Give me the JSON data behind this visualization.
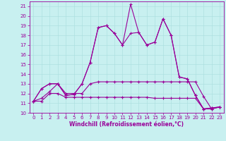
{
  "xlabel": "Windchill (Refroidissement éolien,°C)",
  "bg_color": "#c8f0f0",
  "line_color": "#990099",
  "grid_color": "#a8dede",
  "xlim": [
    -0.5,
    23.5
  ],
  "ylim": [
    10,
    21.5
  ],
  "yticks": [
    10,
    11,
    12,
    13,
    14,
    15,
    16,
    17,
    18,
    19,
    20,
    21
  ],
  "xticks": [
    0,
    1,
    2,
    3,
    4,
    5,
    6,
    7,
    8,
    9,
    10,
    11,
    12,
    13,
    14,
    15,
    16,
    17,
    18,
    19,
    20,
    21,
    22,
    23
  ],
  "line1_x": [
    0,
    1,
    2,
    3,
    4,
    5,
    6,
    7,
    8,
    9,
    10,
    11,
    12,
    13,
    14,
    15,
    16,
    17,
    18,
    19,
    20,
    21,
    22,
    23
  ],
  "line1_y": [
    11.2,
    12.5,
    13.0,
    13.0,
    11.8,
    11.9,
    13.0,
    15.2,
    18.8,
    19.0,
    18.2,
    17.0,
    21.2,
    18.3,
    17.0,
    17.3,
    19.7,
    18.0,
    13.7,
    13.5,
    11.8,
    10.4,
    10.5,
    10.6
  ],
  "line2_x": [
    0,
    1,
    2,
    3,
    4,
    5,
    6,
    7,
    8,
    9,
    10,
    11,
    12,
    13,
    14,
    15,
    16,
    17,
    18,
    19,
    20,
    21,
    22,
    23
  ],
  "line2_y": [
    11.2,
    12.5,
    13.0,
    13.0,
    11.8,
    11.9,
    13.0,
    15.2,
    18.8,
    19.0,
    18.2,
    17.0,
    18.2,
    18.3,
    17.0,
    17.3,
    19.7,
    18.0,
    13.7,
    13.5,
    11.8,
    10.4,
    10.5,
    10.6
  ],
  "line3_x": [
    0,
    1,
    2,
    3,
    4,
    5,
    6,
    7,
    8,
    9,
    10,
    11,
    12,
    13,
    14,
    15,
    16,
    17,
    18,
    19,
    20,
    21,
    22,
    23
  ],
  "line3_y": [
    11.2,
    11.5,
    12.2,
    13.0,
    12.0,
    12.0,
    12.0,
    13.0,
    13.2,
    13.2,
    13.2,
    13.2,
    13.2,
    13.2,
    13.2,
    13.2,
    13.2,
    13.2,
    13.2,
    13.2,
    13.2,
    11.7,
    10.4,
    10.6
  ],
  "line4_x": [
    0,
    1,
    2,
    3,
    4,
    5,
    6,
    7,
    8,
    9,
    10,
    11,
    12,
    13,
    14,
    15,
    16,
    17,
    18,
    19,
    20,
    21,
    22,
    23
  ],
  "line4_y": [
    11.2,
    11.2,
    12.0,
    12.0,
    11.6,
    11.6,
    11.6,
    11.6,
    11.6,
    11.6,
    11.6,
    11.6,
    11.6,
    11.6,
    11.6,
    11.5,
    11.5,
    11.5,
    11.5,
    11.5,
    11.5,
    10.4,
    10.4,
    10.6
  ],
  "xlabel_fontsize": 5.5,
  "tick_fontsize": 5.0
}
